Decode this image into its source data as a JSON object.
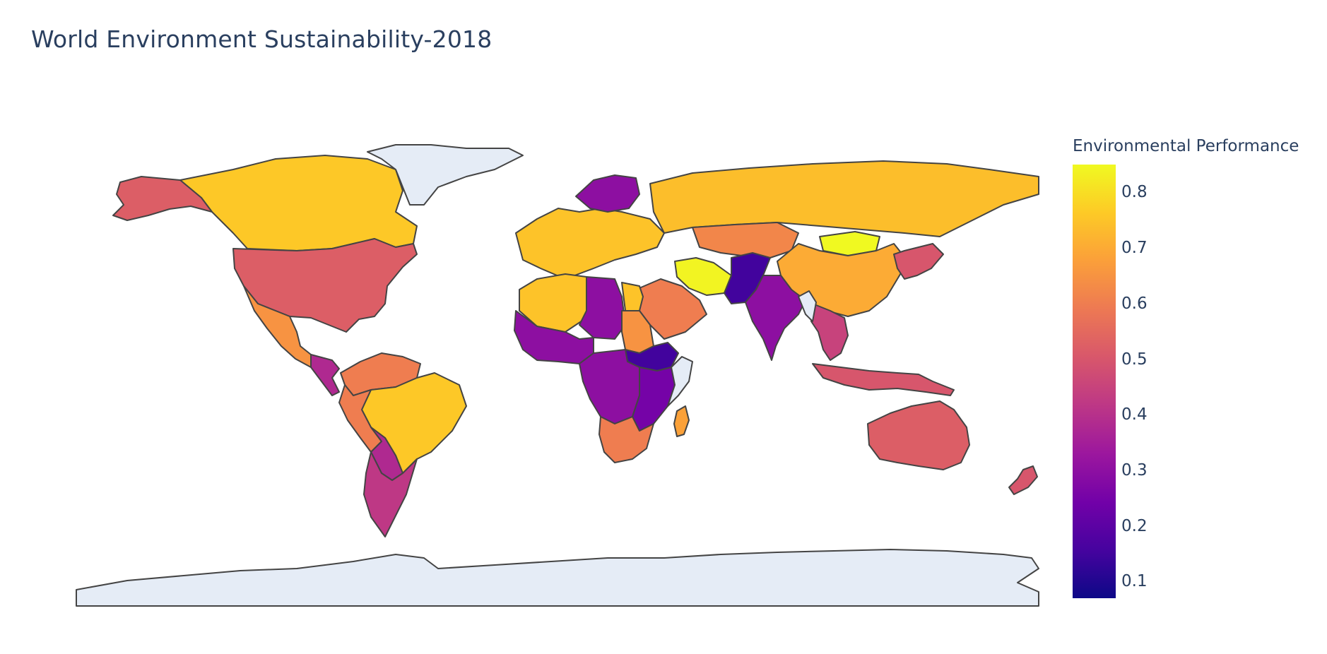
{
  "title": "World Environment Sustainability-2018",
  "colorbar": {
    "title": "Environmental Performance",
    "ticks": [
      "0.8",
      "0.7",
      "0.6",
      "0.5",
      "0.4",
      "0.3",
      "0.2",
      "0.1"
    ],
    "range": [
      0.07,
      0.85
    ],
    "colorscale": [
      "#0d0887",
      "#46039f",
      "#7201a8",
      "#9c179e",
      "#bd3786",
      "#d8576b",
      "#ed7953",
      "#fb9f3a",
      "#fdca26",
      "#f0f921"
    ]
  },
  "map": {
    "projection": "equirectangular",
    "no_data_color": "#e5ecf6",
    "border_color": "#444444"
  },
  "chart_data": {
    "type": "choropleth",
    "title": "World Environment Sustainability-2018",
    "colorbar_title": "Environmental Performance",
    "value_range": [
      0.07,
      0.85
    ],
    "regions": [
      {
        "region": "Canada",
        "value": 0.76
      },
      {
        "region": "USA",
        "value": 0.52
      },
      {
        "region": "Alaska (USA)",
        "value": 0.52
      },
      {
        "region": "Mexico",
        "value": 0.65
      },
      {
        "region": "Central America",
        "value": 0.38
      },
      {
        "region": "Venezuela/Colombia",
        "value": 0.6
      },
      {
        "region": "Brazil",
        "value": 0.76
      },
      {
        "region": "Peru/Ecuador",
        "value": 0.6
      },
      {
        "region": "Bolivia/Paraguay",
        "value": 0.38
      },
      {
        "region": "Argentina/Chile",
        "value": 0.42
      },
      {
        "region": "Western Europe",
        "value": 0.75
      },
      {
        "region": "Scandinavia",
        "value": 0.3
      },
      {
        "region": "Russia",
        "value": 0.74
      },
      {
        "region": "Kazakhstan",
        "value": 0.62
      },
      {
        "region": "Mongolia",
        "value": 0.85
      },
      {
        "region": "China",
        "value": 0.7
      },
      {
        "region": "Japan/Korea",
        "value": 0.5
      },
      {
        "region": "Iran",
        "value": 0.84
      },
      {
        "region": "Saudi Arabia/Yemen",
        "value": 0.6
      },
      {
        "region": "Pakistan/Afghanistan",
        "value": 0.15
      },
      {
        "region": "India",
        "value": 0.3
      },
      {
        "region": "Southeast Asia",
        "value": 0.45
      },
      {
        "region": "Indonesia",
        "value": 0.5
      },
      {
        "region": "Australia",
        "value": 0.52
      },
      {
        "region": "New Zealand",
        "value": 0.5
      },
      {
        "region": "North Africa (west)",
        "value": 0.75
      },
      {
        "region": "Libya/Niger",
        "value": 0.3
      },
      {
        "region": "Egypt",
        "value": 0.75
      },
      {
        "region": "Sudan",
        "value": 0.65
      },
      {
        "region": "West Africa",
        "value": 0.3
      },
      {
        "region": "South Sudan/Ethiopia",
        "value": 0.15
      },
      {
        "region": "Central Africa",
        "value": 0.3
      },
      {
        "region": "East Africa",
        "value": 0.25
      },
      {
        "region": "Southern Africa",
        "value": 0.6
      },
      {
        "region": "Madagascar",
        "value": 0.68
      },
      {
        "region": "Greenland",
        "value": null
      },
      {
        "region": "Antarctica",
        "value": null
      },
      {
        "region": "Somalia",
        "value": null
      },
      {
        "region": "Myanmar",
        "value": null
      }
    ]
  }
}
